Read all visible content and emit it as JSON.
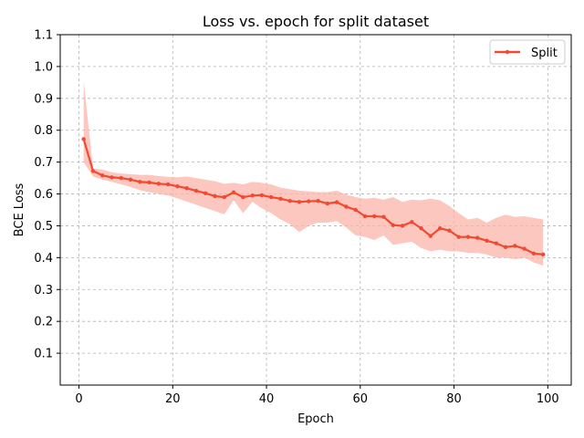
{
  "chart_data": {
    "type": "line",
    "title": "Loss vs. epoch for split dataset",
    "xlabel": "Epoch",
    "ylabel": "BCE Loss",
    "xlim": [
      -4,
      105
    ],
    "ylim": [
      0.0,
      1.1
    ],
    "xticks": [
      0,
      20,
      40,
      60,
      80,
      100
    ],
    "yticks": [
      0.1,
      0.2,
      0.3,
      0.4,
      0.5,
      0.6,
      0.7,
      0.8,
      0.9,
      1.0,
      1.1
    ],
    "grid": true,
    "legend_position": "top-right",
    "colors": {
      "line": "#f04a33",
      "band": "#f9b4aa"
    },
    "series": [
      {
        "name": "Split",
        "x": [
          1,
          3,
          5,
          7,
          9,
          11,
          13,
          15,
          17,
          19,
          21,
          23,
          25,
          27,
          29,
          31,
          33,
          35,
          37,
          39,
          41,
          43,
          45,
          47,
          49,
          51,
          53,
          55,
          57,
          59,
          61,
          63,
          65,
          67,
          69,
          71,
          73,
          75,
          77,
          79,
          81,
          83,
          85,
          87,
          89,
          91,
          93,
          95,
          97,
          99
        ],
        "y": [
          0.772,
          0.672,
          0.658,
          0.652,
          0.65,
          0.645,
          0.638,
          0.636,
          0.632,
          0.63,
          0.624,
          0.618,
          0.61,
          0.602,
          0.593,
          0.59,
          0.605,
          0.59,
          0.595,
          0.596,
          0.59,
          0.585,
          0.578,
          0.575,
          0.577,
          0.578,
          0.57,
          0.574,
          0.56,
          0.55,
          0.53,
          0.53,
          0.528,
          0.502,
          0.5,
          0.512,
          0.492,
          0.468,
          0.492,
          0.485,
          0.465,
          0.465,
          0.462,
          0.453,
          0.445,
          0.433,
          0.437,
          0.428,
          0.413,
          0.41
        ],
        "lower": [
          0.7,
          0.655,
          0.645,
          0.638,
          0.63,
          0.622,
          0.612,
          0.605,
          0.6,
          0.595,
          0.586,
          0.576,
          0.566,
          0.556,
          0.546,
          0.536,
          0.58,
          0.54,
          0.575,
          0.555,
          0.54,
          0.52,
          0.505,
          0.48,
          0.5,
          0.51,
          0.51,
          0.515,
          0.495,
          0.47,
          0.465,
          0.455,
          0.47,
          0.44,
          0.445,
          0.45,
          0.43,
          0.42,
          0.425,
          0.42,
          0.42,
          0.415,
          0.415,
          0.41,
          0.4,
          0.4,
          0.395,
          0.4,
          0.385,
          0.375
        ],
        "upper": [
          0.955,
          0.68,
          0.676,
          0.668,
          0.664,
          0.662,
          0.66,
          0.66,
          0.656,
          0.654,
          0.652,
          0.655,
          0.65,
          0.645,
          0.64,
          0.632,
          0.635,
          0.63,
          0.638,
          0.635,
          0.63,
          0.62,
          0.615,
          0.61,
          0.608,
          0.606,
          0.606,
          0.61,
          0.598,
          0.59,
          0.585,
          0.588,
          0.582,
          0.59,
          0.575,
          0.582,
          0.58,
          0.585,
          0.58,
          0.562,
          0.54,
          0.52,
          0.525,
          0.51,
          0.525,
          0.535,
          0.528,
          0.53,
          0.525,
          0.52
        ]
      }
    ]
  }
}
